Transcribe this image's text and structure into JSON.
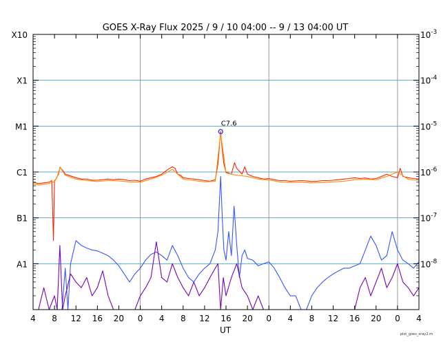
{
  "chart_data": {
    "type": "line",
    "title": "GOES X-Ray Flux   2025  /  9  /  10   04:00 --  9  /  13   04:00   UT",
    "xlabel": "UT",
    "credit": "plot_goes_xray2.m",
    "x_range_hours": [
      0,
      72
    ],
    "x_ticks": [
      {
        "h": 0,
        "label": "4"
      },
      {
        "h": 4,
        "label": "8"
      },
      {
        "h": 8,
        "label": "12"
      },
      {
        "h": 12,
        "label": "16"
      },
      {
        "h": 16,
        "label": "20"
      },
      {
        "h": 20,
        "label": "0"
      },
      {
        "h": 24,
        "label": "4"
      },
      {
        "h": 28,
        "label": "8"
      },
      {
        "h": 32,
        "label": "12"
      },
      {
        "h": 36,
        "label": "16"
      },
      {
        "h": 40,
        "label": "20"
      },
      {
        "h": 44,
        "label": "0"
      },
      {
        "h": 48,
        "label": "4"
      },
      {
        "h": 52,
        "label": "8"
      },
      {
        "h": 56,
        "label": "12"
      },
      {
        "h": 60,
        "label": "16"
      },
      {
        "h": 64,
        "label": "20"
      },
      {
        "h": 68,
        "label": "0"
      },
      {
        "h": 72,
        "label": "4"
      }
    ],
    "day_boundaries_hours": [
      20,
      44,
      68
    ],
    "y_log_range": [
      -9,
      -3
    ],
    "y_scale": "log",
    "left_labels": [
      {
        "exp": -8,
        "label": "A1"
      },
      {
        "exp": -7,
        "label": "B1"
      },
      {
        "exp": -6,
        "label": "C1"
      },
      {
        "exp": -5,
        "label": "M1"
      },
      {
        "exp": -4,
        "label": "X1"
      },
      {
        "exp": -3,
        "label": "X10"
      }
    ],
    "right_labels": [
      {
        "exp": -8,
        "label": "10",
        "sup": "-8"
      },
      {
        "exp": -7,
        "label": "10",
        "sup": "-7"
      },
      {
        "exp": -6,
        "label": "10",
        "sup": "-6"
      },
      {
        "exp": -5,
        "label": "10",
        "sup": "-5"
      },
      {
        "exp": -4,
        "label": "10",
        "sup": "-4"
      },
      {
        "exp": -3,
        "label": "10",
        "sup": "-3"
      }
    ],
    "grid": true,
    "peak": {
      "label": "C7.6",
      "h": 35.0,
      "value": 7.6e-06
    },
    "colors": {
      "long_primary": "#ff2200",
      "long_secondary": "#ff8c00",
      "short_primary": "#3355ff",
      "short_secondary": "#7700bb",
      "grid": "#55aacc",
      "day_line": "#999999",
      "peak_marker": "#2222ff"
    },
    "series": [
      {
        "id": "long_primary",
        "color": "#ff2200",
        "x": [
          0,
          1,
          2,
          3,
          3.5,
          3.8,
          4,
          4.3,
          4.7,
          5,
          5.5,
          6,
          7,
          8,
          9,
          10,
          11,
          12,
          13,
          14,
          15,
          16,
          17,
          18,
          19,
          20,
          21,
          22,
          23,
          24,
          25,
          26,
          26.5,
          27,
          27.5,
          28,
          29,
          30,
          31,
          32,
          33,
          34,
          34.5,
          35,
          35.3,
          35.6,
          36,
          37,
          37.6,
          38,
          39,
          39.5,
          40,
          41,
          42,
          43,
          44,
          45,
          46,
          47,
          48,
          49,
          50,
          51,
          52,
          53,
          54,
          55,
          56,
          57,
          58,
          59,
          60,
          61,
          62,
          63,
          64,
          65,
          66,
          67,
          68,
          68.5,
          69,
          70,
          71,
          72
        ],
        "y": [
          6e-07,
          5.6e-07,
          5.8e-07,
          6e-07,
          6.5e-07,
          3.2e-08,
          6.5e-07,
          7e-07,
          9e-07,
          1.25e-06,
          1.1e-06,
          9e-07,
          8.2e-07,
          7.5e-07,
          7e-07,
          7e-07,
          6.6e-07,
          6.6e-07,
          6.8e-07,
          7e-07,
          6.8e-07,
          7e-07,
          6.8e-07,
          6.5e-07,
          6.6e-07,
          6.3e-07,
          7e-07,
          7.5e-07,
          8e-07,
          9e-07,
          1.1e-06,
          1.3e-06,
          1.2e-06,
          9e-07,
          8.5e-07,
          7.5e-07,
          7.2e-07,
          7e-07,
          6.8e-07,
          6.5e-07,
          6.3e-07,
          6.8e-07,
          1.5e-06,
          7.6e-06,
          3e-06,
          1.5e-06,
          1e-06,
          9e-07,
          1.6e-06,
          1.2e-06,
          9e-07,
          1.3e-06,
          9e-07,
          8e-07,
          7.5e-07,
          7e-07,
          7.2e-07,
          6.8e-07,
          6.5e-07,
          6.5e-07,
          6.3e-07,
          6.4e-07,
          6.5e-07,
          6.4e-07,
          6.2e-07,
          6.3e-07,
          6.5e-07,
          6.5e-07,
          6.6e-07,
          6.8e-07,
          7e-07,
          7.2e-07,
          7.5e-07,
          7.2e-07,
          7.4e-07,
          7e-07,
          7.2e-07,
          8e-07,
          9e-07,
          8e-07,
          7.5e-07,
          1.2e-06,
          8e-07,
          7.5e-07,
          7.2e-07,
          7e-07
        ]
      },
      {
        "id": "long_secondary",
        "color": "#ff8c00",
        "x": [
          0,
          1,
          2,
          3,
          4,
          4.8,
          5,
          6,
          8,
          10,
          12,
          14,
          16,
          18,
          20,
          22,
          24,
          26,
          28,
          30,
          32,
          34,
          35,
          36,
          38,
          40,
          42,
          44,
          46,
          48,
          50,
          52,
          54,
          56,
          58,
          60,
          62,
          64,
          66,
          68,
          70,
          72
        ],
        "y": [
          5.5e-07,
          5.2e-07,
          5.4e-07,
          5.6e-07,
          6.2e-07,
          9e-07,
          1.3e-06,
          8.5e-07,
          7e-07,
          6.5e-07,
          6.2e-07,
          6.5e-07,
          6.4e-07,
          6.1e-07,
          6e-07,
          7e-07,
          8.5e-07,
          1.15e-06,
          7e-07,
          6.5e-07,
          6.1e-07,
          6.3e-07,
          6.9e-06,
          9.5e-07,
          8.5e-07,
          8e-07,
          7e-07,
          6.7e-07,
          6.1e-07,
          5.9e-07,
          6e-07,
          5.8e-07,
          5.9e-07,
          6.1e-07,
          6.3e-07,
          6.8e-07,
          6.9e-07,
          6.8e-07,
          8e-07,
          1e-06,
          6.9e-07,
          6.5e-07
        ]
      },
      {
        "id": "short_primary",
        "color": "#3355ff",
        "x": [
          0,
          1,
          2,
          3,
          4,
          4.3,
          4.7,
          5,
          5.4,
          5.8,
          6,
          6.5,
          7,
          8,
          9,
          10,
          11,
          12,
          13,
          14,
          15,
          16,
          17,
          18,
          19,
          20,
          21,
          22,
          23,
          24,
          25,
          26,
          27,
          28,
          29,
          30,
          31,
          32,
          33,
          34,
          34.5,
          35,
          35.3,
          35.6,
          36,
          36.5,
          37,
          37.5,
          38,
          38.5,
          39,
          39.5,
          40,
          41,
          42,
          43,
          44,
          45,
          46,
          47,
          48,
          49,
          50,
          51,
          52,
          53,
          54,
          55,
          56,
          57,
          58,
          59,
          60,
          61,
          62,
          63,
          64,
          65,
          66,
          67,
          68,
          69,
          70,
          71,
          72
        ],
        "y": [
          1e-09,
          1e-09,
          1e-09,
          1e-09,
          1e-09,
          1e-09,
          1e-09,
          1e-09,
          1e-09,
          4e-09,
          8e-09,
          1e-09,
          1e-08,
          3.2e-08,
          2.5e-08,
          2.2e-08,
          2e-08,
          1.9e-08,
          1.7e-08,
          1.5e-08,
          1.2e-08,
          9e-09,
          6e-09,
          4e-09,
          6e-09,
          8e-09,
          1.2e-08,
          1.6e-08,
          1.8e-08,
          1.5e-08,
          1.2e-08,
          2.5e-08,
          1.5e-08,
          8e-09,
          5e-09,
          4e-09,
          6e-09,
          8e-09,
          1e-08,
          2e-08,
          5e-08,
          8e-07,
          1e-07,
          2e-08,
          1.2e-08,
          5e-08,
          1.5e-08,
          1.8e-07,
          2.5e-08,
          5e-09,
          1.5e-08,
          2e-08,
          1.3e-08,
          1.2e-08,
          9e-09,
          1e-08,
          1.1e-08,
          8e-09,
          5e-09,
          3e-09,
          2e-09,
          2e-09,
          1e-09,
          1e-09,
          2e-09,
          3e-09,
          4e-09,
          5e-09,
          6e-09,
          7e-09,
          8e-09,
          8e-09,
          9e-09,
          1e-08,
          2e-08,
          4e-08,
          2.5e-08,
          1.2e-08,
          1.5e-08,
          5e-08,
          2e-08,
          1.2e-08,
          1e-08,
          8e-09,
          1.1e-08
        ]
      },
      {
        "id": "short_secondary",
        "color": "#7700bb",
        "x": [
          0,
          1,
          2,
          3,
          4,
          4.5,
          5,
          5.5,
          6,
          7,
          8,
          9,
          10,
          11,
          12,
          13,
          14,
          15,
          16,
          17,
          18,
          19,
          20,
          21,
          22,
          23,
          24,
          25,
          26,
          27,
          28,
          29,
          30,
          31,
          32,
          33,
          34,
          34.5,
          35,
          35.5,
          36,
          37,
          38,
          39,
          40,
          41,
          42,
          43,
          44,
          45,
          46,
          47,
          48,
          49,
          50,
          51,
          52,
          53,
          54,
          55,
          56,
          57,
          58,
          59,
          60,
          61,
          62,
          63,
          64,
          65,
          66,
          67,
          68,
          69,
          70,
          71,
          72
        ],
        "y": [
          1e-09,
          1e-09,
          3e-09,
          1e-09,
          2e-09,
          1e-09,
          2.5e-08,
          1e-09,
          2e-09,
          6e-09,
          4e-09,
          3e-09,
          5e-09,
          2e-09,
          3e-09,
          7e-09,
          2e-09,
          1e-09,
          1e-09,
          1e-09,
          1e-09,
          1e-09,
          2e-09,
          3e-09,
          5e-09,
          3e-08,
          5e-09,
          4e-09,
          1e-08,
          5e-09,
          3e-09,
          2e-09,
          4e-09,
          2e-09,
          3e-09,
          5e-09,
          8e-09,
          1e-08,
          1e-09,
          5e-09,
          2e-09,
          5e-09,
          1e-08,
          3e-09,
          2e-09,
          1e-09,
          2e-09,
          1e-09,
          1e-09,
          1e-09,
          1e-09,
          1e-09,
          1e-09,
          1e-09,
          1e-09,
          1e-09,
          1e-09,
          1e-09,
          1e-09,
          1e-09,
          1e-09,
          1e-09,
          1e-09,
          1e-09,
          1e-09,
          3e-09,
          5e-09,
          2e-09,
          4e-09,
          8e-09,
          3e-09,
          5e-09,
          1e-08,
          4e-09,
          3e-09,
          2e-09,
          3e-09
        ]
      }
    ]
  }
}
